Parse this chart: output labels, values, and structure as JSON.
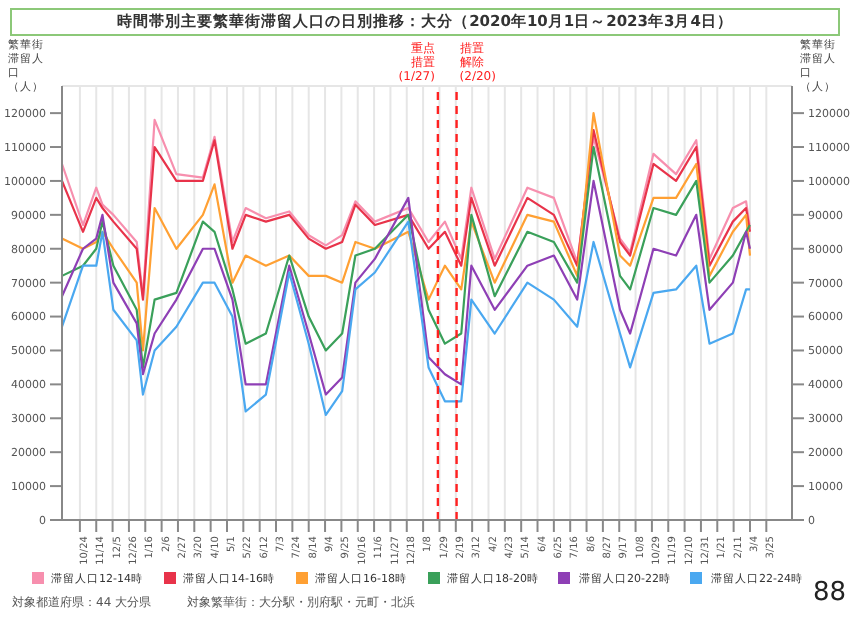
{
  "chart_data": {
    "type": "line",
    "title": "時間帯別主要繁華街滞留人口の日別推移：大分（2020年10月1日～2023年3月4日）",
    "ylabel": "繁華街滞留人口（人）",
    "y2label": "繁華街滞留人口（人）",
    "x": [
      "2020-10-01",
      "2020-10-28",
      "2020-11-14",
      "2020-11-22",
      "2020-12-06",
      "2021-01-05",
      "2021-01-13",
      "2021-01-28",
      "2021-02-25",
      "2021-03-31",
      "2021-04-15",
      "2021-05-08",
      "2021-05-25",
      "2021-06-20",
      "2021-07-20",
      "2021-08-14",
      "2021-09-05",
      "2021-09-26",
      "2021-10-13",
      "2021-11-07",
      "2021-12-20",
      "2022-01-15",
      "2022-02-05",
      "2022-02-26",
      "2022-03-11",
      "2022-04-10",
      "2022-05-22",
      "2022-06-25",
      "2022-07-25",
      "2022-08-15",
      "2022-09-18",
      "2022-10-01",
      "2022-10-31",
      "2022-11-29",
      "2022-12-25",
      "2023-01-11",
      "2023-02-10",
      "2023-02-27",
      "2023-03-04"
    ],
    "series": [
      {
        "name": "滞留人口12-14時",
        "color": "#f78fae",
        "values": [
          105000,
          87000,
          98000,
          93000,
          90000,
          82000,
          66000,
          118000,
          102000,
          101000,
          113000,
          82000,
          92000,
          89000,
          91000,
          84000,
          81000,
          84000,
          94000,
          88000,
          92000,
          82000,
          88000,
          77000,
          98000,
          77000,
          98000,
          95000,
          76000,
          113000,
          83000,
          79000,
          108000,
          102000,
          112000,
          77000,
          92000,
          94000,
          86000
        ]
      },
      {
        "name": "滞留人口14-16時",
        "color": "#e8334a",
        "values": [
          100000,
          85000,
          95000,
          92000,
          88000,
          80000,
          65000,
          110000,
          100000,
          100000,
          112000,
          80000,
          90000,
          88000,
          90000,
          83000,
          80000,
          82000,
          93000,
          87000,
          90000,
          80000,
          85000,
          75000,
          95000,
          75000,
          95000,
          90000,
          75000,
          115000,
          82000,
          78000,
          105000,
          100000,
          110000,
          75000,
          88000,
          92000,
          85000
        ]
      },
      {
        "name": "滞留人口16-18時",
        "color": "#ffa033",
        "values": [
          83000,
          80000,
          82000,
          85000,
          80000,
          70000,
          50000,
          92000,
          80000,
          90000,
          99000,
          70000,
          78000,
          75000,
          78000,
          72000,
          72000,
          70000,
          82000,
          80000,
          85000,
          65000,
          75000,
          68000,
          88000,
          70000,
          90000,
          88000,
          72000,
          120000,
          78000,
          75000,
          95000,
          95000,
          105000,
          72000,
          85000,
          90000,
          78000
        ]
      },
      {
        "name": "滞留人口18-20時",
        "color": "#3aa05a",
        "values": [
          72000,
          75000,
          80000,
          88000,
          75000,
          62000,
          45000,
          65000,
          67000,
          88000,
          85000,
          68000,
          52000,
          55000,
          78000,
          60000,
          50000,
          55000,
          78000,
          80000,
          90000,
          62000,
          52000,
          55000,
          90000,
          66000,
          85000,
          82000,
          70000,
          110000,
          72000,
          68000,
          92000,
          90000,
          100000,
          70000,
          78000,
          85000,
          87000
        ]
      },
      {
        "name": "滞留人口20-22時",
        "color": "#8e3fb5",
        "values": [
          66000,
          80000,
          83000,
          90000,
          70000,
          58000,
          43000,
          55000,
          65000,
          80000,
          80000,
          65000,
          40000,
          40000,
          75000,
          55000,
          37000,
          42000,
          70000,
          77000,
          95000,
          48000,
          43000,
          40000,
          75000,
          62000,
          75000,
          78000,
          65000,
          100000,
          62000,
          55000,
          80000,
          78000,
          90000,
          62000,
          70000,
          85000,
          80000
        ]
      },
      {
        "name": "滞留人口22-24時",
        "color": "#4aa8f0",
        "values": [
          57000,
          75000,
          75000,
          85000,
          62000,
          53000,
          37000,
          50000,
          57000,
          70000,
          70000,
          60000,
          32000,
          37000,
          73000,
          52000,
          31000,
          38000,
          68000,
          73000,
          88000,
          45000,
          35000,
          35000,
          65000,
          55000,
          70000,
          65000,
          57000,
          82000,
          55000,
          45000,
          67000,
          68000,
          75000,
          52000,
          55000,
          68000,
          68000
        ]
      }
    ],
    "xlim": [
      "2020-10-01",
      "2023-04-27"
    ],
    "xticks": [
      {
        "value": "2020-10-24",
        "label": "10/24"
      },
      {
        "value": "2020-11-14",
        "label": "11/14"
      },
      {
        "value": "2020-12-05",
        "label": "12/5"
      },
      {
        "value": "2020-12-26",
        "label": "12/26"
      },
      {
        "value": "2021-01-16",
        "label": "1/16"
      },
      {
        "value": "2021-02-06",
        "label": "2/6"
      },
      {
        "value": "2021-02-27",
        "label": "2/27"
      },
      {
        "value": "2021-03-20",
        "label": "3/20"
      },
      {
        "value": "2021-04-10",
        "label": "4/10"
      },
      {
        "value": "2021-05-01",
        "label": "5/1"
      },
      {
        "value": "2021-05-22",
        "label": "5/22"
      },
      {
        "value": "2021-06-12",
        "label": "6/12"
      },
      {
        "value": "2021-07-03",
        "label": "7/3"
      },
      {
        "value": "2021-07-24",
        "label": "7/24"
      },
      {
        "value": "2021-08-14",
        "label": "8/14"
      },
      {
        "value": "2021-09-04",
        "label": "9/4"
      },
      {
        "value": "2021-09-25",
        "label": "9/25"
      },
      {
        "value": "2021-10-16",
        "label": "10/16"
      },
      {
        "value": "2021-11-06",
        "label": "11/6"
      },
      {
        "value": "2021-11-27",
        "label": "11/27"
      },
      {
        "value": "2021-12-18",
        "label": "12/18"
      },
      {
        "value": "2022-01-08",
        "label": "1/8"
      },
      {
        "value": "2022-01-29",
        "label": "1/29"
      },
      {
        "value": "2022-02-19",
        "label": "2/19"
      },
      {
        "value": "2022-03-12",
        "label": "3/12"
      },
      {
        "value": "2022-04-02",
        "label": "4/2"
      },
      {
        "value": "2022-04-23",
        "label": "4/23"
      },
      {
        "value": "2022-05-14",
        "label": "5/14"
      },
      {
        "value": "2022-06-04",
        "label": "6/4"
      },
      {
        "value": "2022-06-25",
        "label": "6/25"
      },
      {
        "value": "2022-07-16",
        "label": "7/16"
      },
      {
        "value": "2022-08-06",
        "label": "8/6"
      },
      {
        "value": "2022-08-27",
        "label": "8/27"
      },
      {
        "value": "2022-09-17",
        "label": "9/17"
      },
      {
        "value": "2022-10-08",
        "label": "10/8"
      },
      {
        "value": "2022-10-29",
        "label": "10/29"
      },
      {
        "value": "2022-11-19",
        "label": "11/19"
      },
      {
        "value": "2022-12-10",
        "label": "12/10"
      },
      {
        "value": "2022-12-31",
        "label": "12/31"
      },
      {
        "value": "2023-01-21",
        "label": "1/21"
      },
      {
        "value": "2023-02-11",
        "label": "2/11"
      },
      {
        "value": "2023-03-04",
        "label": "3/4"
      },
      {
        "value": "2023-03-25",
        "label": "3/25"
      }
    ],
    "ylim": [
      0,
      128000
    ],
    "yticks": [
      0,
      10000,
      20000,
      30000,
      40000,
      50000,
      60000,
      70000,
      80000,
      90000,
      100000,
      110000,
      120000
    ],
    "y2lim": [
      0,
      128000
    ],
    "y2ticks": [
      0,
      10000,
      20000,
      30000,
      40000,
      50000,
      60000,
      70000,
      80000,
      90000,
      100000,
      110000,
      120000
    ],
    "ref_lines": [
      {
        "axis": "x",
        "value": "2022-01-27",
        "label": "重点措置(1/27)",
        "color": "#ff2020",
        "line_style": "dashed"
      },
      {
        "axis": "x",
        "value": "2022-02-20",
        "label": "措置解除(2/20)",
        "color": "#ff2020",
        "line_style": "dashed"
      }
    ],
    "grid": true,
    "legend": "bottom",
    "annotations": [
      "対象都道府県：44 大分県",
      "対象繁華街：大分駅・別府駅・元町・北浜",
      "88"
    ]
  }
}
